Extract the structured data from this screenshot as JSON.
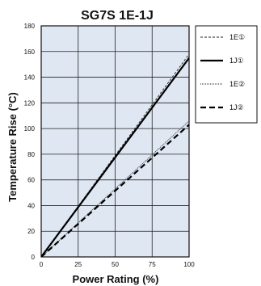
{
  "chart_data": {
    "type": "line",
    "title": "SG7S 1E-1J",
    "xlabel": "Power Rating (%)",
    "ylabel": "Temperature Rise (°C)",
    "xlim": [
      0,
      100
    ],
    "ylim": [
      0,
      180
    ],
    "x_ticks": [
      "0",
      "25",
      "50",
      "75",
      "100"
    ],
    "y_ticks": [
      "0",
      "20",
      "40",
      "60",
      "80",
      "100",
      "120",
      "140",
      "160",
      "180"
    ],
    "grid": true,
    "legend_position": "right",
    "plot_background": "#dfe7f3",
    "series": [
      {
        "name": "1E①",
        "x": [
          0,
          100
        ],
        "y": [
          0,
          158
        ],
        "color": "#222222",
        "style": "dashed-thin"
      },
      {
        "name": "1J①",
        "x": [
          0,
          100
        ],
        "y": [
          0,
          155
        ],
        "color": "#000000",
        "style": "solid-thick"
      },
      {
        "name": "1E②",
        "x": [
          0,
          100
        ],
        "y": [
          0,
          106
        ],
        "color": "#222222",
        "style": "dotted-thin"
      },
      {
        "name": "1J②",
        "x": [
          0,
          100
        ],
        "y": [
          0,
          103
        ],
        "color": "#000000",
        "style": "dashed-thick"
      }
    ]
  }
}
